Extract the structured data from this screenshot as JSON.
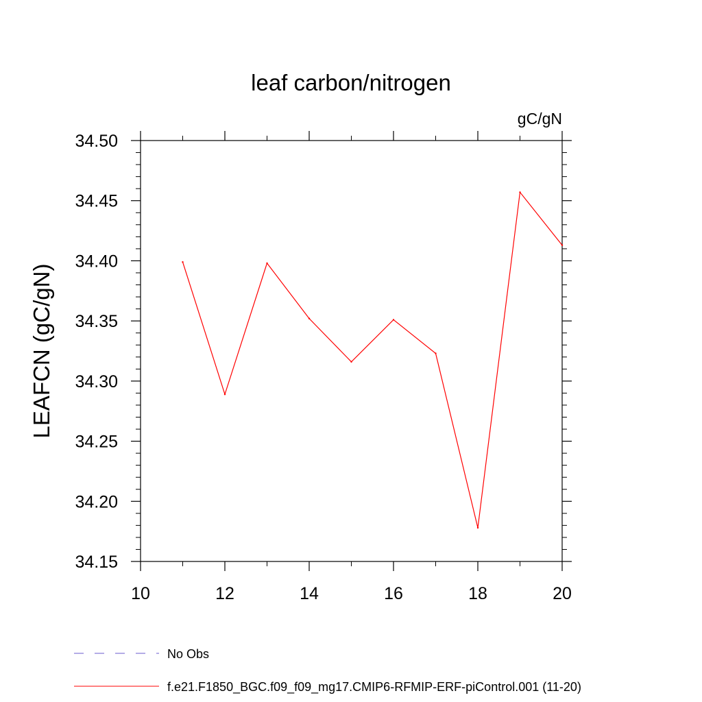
{
  "chart_data": {
    "type": "line",
    "title": "leaf carbon/nitrogen",
    "units_label": "gC/gN",
    "ylabel": "LEAFCN  (gC/gN)",
    "xlabel": "",
    "xlim": [
      10,
      20
    ],
    "ylim": [
      34.15,
      34.5
    ],
    "x_ticks": [
      "10",
      "12",
      "14",
      "16",
      "18",
      "20"
    ],
    "y_ticks": [
      "34.15",
      "34.20",
      "34.25",
      "34.30",
      "34.35",
      "34.40",
      "34.45",
      "34.50"
    ],
    "grid": false,
    "legend_position": "bottom-left",
    "series": [
      {
        "name": "f.e21.F1850_BGC.f09_f09_mg17.CMIP6-RFMIP-ERF-piControl.001 (11-20)",
        "color": "#ff0000",
        "x": [
          11,
          12,
          13,
          14,
          15,
          16,
          17,
          18,
          19,
          20
        ],
        "values": [
          34.399,
          34.289,
          34.398,
          34.352,
          34.316,
          34.351,
          34.323,
          34.178,
          34.457,
          34.413
        ]
      }
    ],
    "legend": [
      {
        "label": "No Obs",
        "color": "#6a5acd",
        "style": "dashed"
      },
      {
        "label": "f.e21.F1850_BGC.f09_f09_mg17.CMIP6-RFMIP-ERF-piControl.001 (11-20)",
        "color": "#ff0000",
        "style": "solid"
      }
    ]
  }
}
